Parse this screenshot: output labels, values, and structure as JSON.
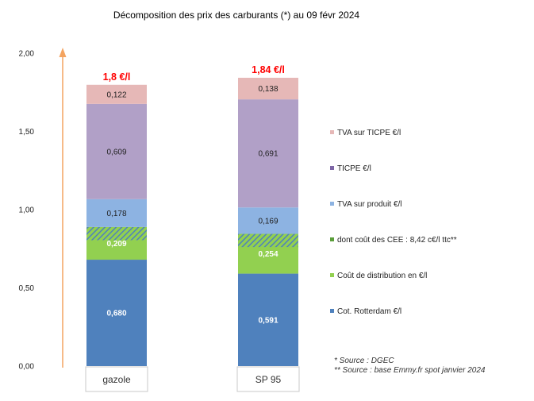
{
  "chart_data": {
    "type": "bar",
    "stacked": true,
    "title": "Décomposition des prix des carburants (*) au 09 févr 2024",
    "categories": [
      "gazole",
      "SP 95"
    ],
    "ylim": [
      0,
      2
    ],
    "yticks": [
      "0,00",
      "0,50",
      "1,00",
      "1,50",
      "2,00"
    ],
    "ytick_values": [
      0,
      0.5,
      1.0,
      1.5,
      2.0
    ],
    "totals": [
      "1,8 €/l",
      "1,84 €/l"
    ],
    "series": [
      {
        "name": "Cot. Rotterdam €/l",
        "values": [
          0.68,
          0.591
        ],
        "labels": [
          "0,680",
          "0,591"
        ],
        "color": "#4f81bd",
        "label_color": "#ffffff"
      },
      {
        "name": "Coût de distribution en €/l",
        "values": [
          0.209,
          0.254
        ],
        "labels": [
          "0,209",
          "0,254"
        ],
        "color": "#92d050",
        "label_color": "#ffffff"
      },
      {
        "name": "dont coût des CEE : 8,42 c€/l ttc**",
        "values": [
          0.0842,
          0.0842
        ],
        "labels": [
          "",
          ""
        ],
        "color": "#4f81bd",
        "hatch": true,
        "overlay": true
      },
      {
        "name": "TVA sur produit €/l",
        "values": [
          0.178,
          0.169
        ],
        "labels": [
          "0,178",
          "0,169"
        ],
        "color": "#8db3e2",
        "label_color": "#222222"
      },
      {
        "name": "TICPE €/l",
        "values": [
          0.609,
          0.691
        ],
        "labels": [
          "0,609",
          "0,691"
        ],
        "color": "#b1a0c7",
        "label_color": "#222222"
      },
      {
        "name": "TVA sur TICPE €/l",
        "values": [
          0.122,
          0.138
        ],
        "labels": [
          "0,122",
          "0,138"
        ],
        "color": "#e6b8b7",
        "label_color": "#222222"
      }
    ],
    "legend_position": "right",
    "legend_order": [
      "TVA sur TICPE €/l",
      "TICPE €/l",
      "TVA sur produit €/l",
      "dont coût des CEE : 8,42 c€/l ttc**",
      "Coût de distribution en €/l",
      "Cot. Rotterdam €/l"
    ],
    "legend_colors": [
      "#e6b8b7",
      "#7e66a6",
      "#8db3e2",
      "#5a9e3a",
      "#92d050",
      "#4f81bd"
    ],
    "notes": [
      "* Source : DGEC",
      "** Source : base Emmy.fr spot janvier 2024"
    ],
    "arrow_color": "#f4a460"
  }
}
